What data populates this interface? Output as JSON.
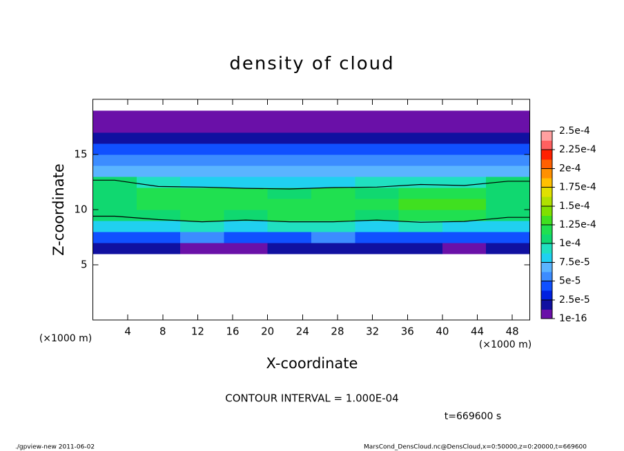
{
  "chart_data": {
    "type": "contour",
    "title": "density of cloud",
    "xlabel": "X-coordinate",
    "ylabel": "Z-coordinate",
    "x_unit_left": "(×1000 m)",
    "x_unit_right": "(×1000 m)",
    "contour_text": "CONTOUR INTERVAL = 1.000E-04",
    "contour_interval": 0.0001,
    "time_text": "t=669600 s",
    "footer_left": "./gpview-new   2011-06-02",
    "footer_right": "MarsCond_DensCloud.nc@DensCloud,x=0:50000,z=0:20000,t=669600",
    "xlim": [
      0,
      50
    ],
    "ylim": [
      0,
      20
    ],
    "xticks": [
      4,
      8,
      12,
      16,
      20,
      24,
      28,
      32,
      36,
      40,
      44,
      48
    ],
    "yticks": [
      5,
      10,
      15
    ],
    "xbins": [
      0,
      5,
      10,
      15,
      20,
      25,
      30,
      35,
      40,
      45,
      50
    ],
    "zbins": [
      0,
      1,
      2,
      3,
      4,
      5,
      6,
      7,
      8,
      9,
      10,
      11,
      12,
      13,
      14,
      15,
      16,
      17,
      18,
      19,
      20
    ],
    "values": [
      [
        0,
        0,
        0,
        0,
        0,
        0,
        0,
        0,
        0,
        0
      ],
      [
        0,
        0,
        0,
        0,
        0,
        0,
        0,
        0,
        0,
        0
      ],
      [
        0,
        0,
        0,
        0,
        0,
        0,
        0,
        0,
        0,
        0
      ],
      [
        0,
        0,
        0,
        0,
        0,
        0,
        0,
        0,
        0,
        0
      ],
      [
        0,
        0,
        0,
        0,
        0,
        0,
        0,
        0,
        0,
        0
      ],
      [
        0,
        0,
        0,
        0,
        0,
        0,
        0,
        0,
        0,
        0
      ],
      [
        1.5e-05,
        1.5e-05,
        1.2e-05,
        1.2e-05,
        1.5e-05,
        1.5e-05,
        1.5e-05,
        1.5e-05,
        1.2e-05,
        1.5e-05
      ],
      [
        5e-05,
        4.5e-05,
        5.5e-05,
        5e-05,
        5e-05,
        5.5e-05,
        5e-05,
        5e-05,
        4.5e-05,
        5e-05
      ],
      [
        8e-05,
        8.5e-05,
        9e-05,
        8.5e-05,
        9e-05,
        9e-05,
        8.5e-05,
        9e-05,
        8.5e-05,
        8e-05
      ],
      [
        0.000102,
        0.00011,
        0.000115,
        0.000112,
        0.000115,
        0.000115,
        0.000112,
        0.000118,
        0.00012,
        0.000105
      ],
      [
        0.00011,
        0.00012,
        0.000125,
        0.000122,
        0.000125,
        0.000125,
        0.000122,
        0.000128,
        0.000135,
        0.000112
      ],
      [
        0.000112,
        0.000115,
        0.000118,
        0.000115,
        0.000112,
        0.000115,
        0.000112,
        0.000118,
        0.000122,
        0.00011
      ],
      [
        0.000105,
        9e-05,
        8.5e-05,
        8e-05,
        8e-05,
        8.5e-05,
        9e-05,
        9.5e-05,
        9e-05,
        0.000102
      ],
      [
        7.5e-05,
        7e-05,
        7e-05,
        6.5e-05,
        6.5e-05,
        7e-05,
        7e-05,
        7e-05,
        7e-05,
        7.5e-05
      ],
      [
        6e-05,
        6e-05,
        6e-05,
        6e-05,
        5.5e-05,
        6e-05,
        6e-05,
        6e-05,
        6e-05,
        6e-05
      ],
      [
        5e-05,
        5e-05,
        5e-05,
        4.5e-05,
        4.5e-05,
        5e-05,
        5e-05,
        4.5e-05,
        5e-05,
        5e-05
      ],
      [
        2.5e-05,
        2.5e-05,
        2.5e-05,
        2.5e-05,
        2.5e-05,
        2.5e-05,
        2.5e-05,
        2.5e-05,
        2.5e-05,
        2.5e-05
      ],
      [
        1e-05,
        1e-05,
        1e-05,
        1e-05,
        1e-05,
        1e-05,
        1e-05,
        1e-05,
        1e-05,
        1e-05
      ],
      [
        6e-06,
        6e-06,
        6e-06,
        6e-06,
        6e-06,
        6e-06,
        6e-06,
        6e-06,
        6e-06,
        6e-06
      ],
      [
        0,
        0,
        0,
        0,
        0,
        0,
        0,
        0,
        0,
        0
      ]
    ],
    "colorbar": {
      "levels": [
        {
          "value": 1e-16,
          "label": "1e-16"
        },
        {
          "value": 2.5e-05,
          "label": "2.5e-5"
        },
        {
          "value": 5e-05,
          "label": "5e-5"
        },
        {
          "value": 7.5e-05,
          "label": "7.5e-5"
        },
        {
          "value": 0.0001,
          "label": "1e-4"
        },
        {
          "value": 0.000125,
          "label": "1.25e-4"
        },
        {
          "value": 0.00015,
          "label": "1.5e-4"
        },
        {
          "value": 0.000175,
          "label": "1.75e-4"
        },
        {
          "value": 0.0002,
          "label": "2e-4"
        },
        {
          "value": 0.000225,
          "label": "2.25e-4"
        },
        {
          "value": 0.00025,
          "label": "2.5e-4"
        }
      ],
      "colors": [
        "#6a10a8",
        "#1010a0",
        "#0020e0",
        "#1050ff",
        "#3c8cff",
        "#5ab4ff",
        "#20d0f0",
        "#20e0c0",
        "#10d870",
        "#20e050",
        "#40e020",
        "#80e000",
        "#b0e000",
        "#e0e000",
        "#ffc000",
        "#ff9000",
        "#ff6000",
        "#ff2000",
        "#ff6060",
        "#ffa0a0"
      ]
    }
  }
}
